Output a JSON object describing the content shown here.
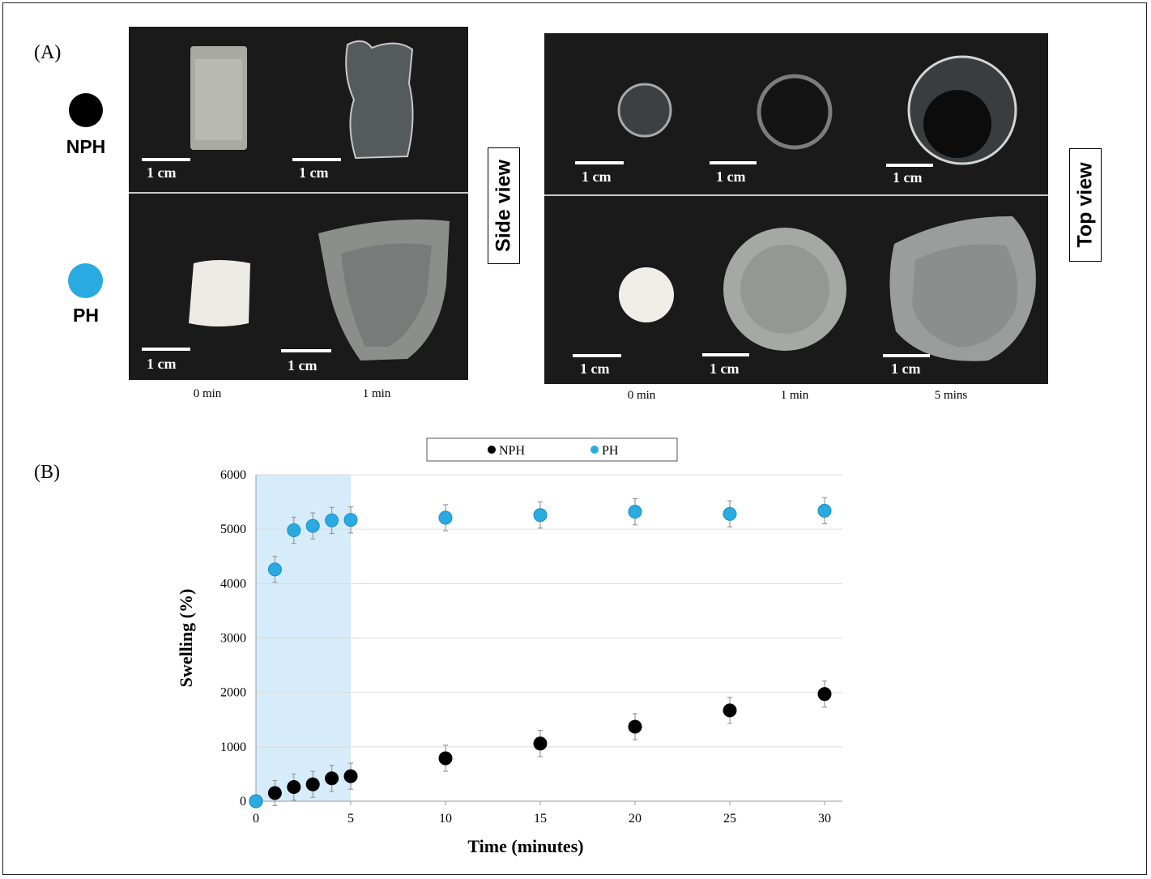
{
  "panel_a": {
    "label": "(A)",
    "legend": [
      {
        "name": "NPH",
        "color": "#000000"
      },
      {
        "name": "PH",
        "color": "#29abe2"
      }
    ],
    "side_view_label": "Side view",
    "top_view_label": "Top view",
    "scale_label": "1 cm",
    "side_times": [
      "0 min",
      "1 min"
    ],
    "top_times": [
      "0 min",
      "1 min",
      "5 mins"
    ]
  },
  "panel_b": {
    "label": "(B)",
    "highlight_colour": "#d6ecfa"
  },
  "chart_data": {
    "type": "scatter",
    "xlabel": "Time (minutes)",
    "ylabel": "Swelling (%)",
    "xlim": [
      0,
      30
    ],
    "ylim": [
      0,
      6000
    ],
    "xticks": [
      0,
      5,
      10,
      15,
      20,
      25,
      30
    ],
    "yticks": [
      0,
      1000,
      2000,
      3000,
      4000,
      5000,
      6000
    ],
    "grid": "horizontal",
    "legend_position": "top",
    "highlight_x_range": [
      0,
      5
    ],
    "series": [
      {
        "name": "NPH",
        "color": "#000000",
        "x": [
          0,
          1,
          2,
          3,
          4,
          5,
          10,
          15,
          20,
          25,
          30
        ],
        "y": [
          0,
          150,
          260,
          310,
          420,
          460,
          790,
          1060,
          1370,
          1670,
          1970
        ],
        "error": [
          0,
          230,
          240,
          240,
          240,
          240,
          240,
          240,
          240,
          240,
          240
        ]
      },
      {
        "name": "PH",
        "color": "#29abe2",
        "x": [
          0,
          1,
          2,
          3,
          4,
          5,
          10,
          15,
          20,
          25,
          30
        ],
        "y": [
          0,
          4260,
          4980,
          5060,
          5160,
          5170,
          5210,
          5260,
          5320,
          5280,
          5340
        ],
        "error": [
          0,
          240,
          240,
          240,
          240,
          240,
          240,
          240,
          240,
          240,
          240
        ]
      }
    ]
  }
}
